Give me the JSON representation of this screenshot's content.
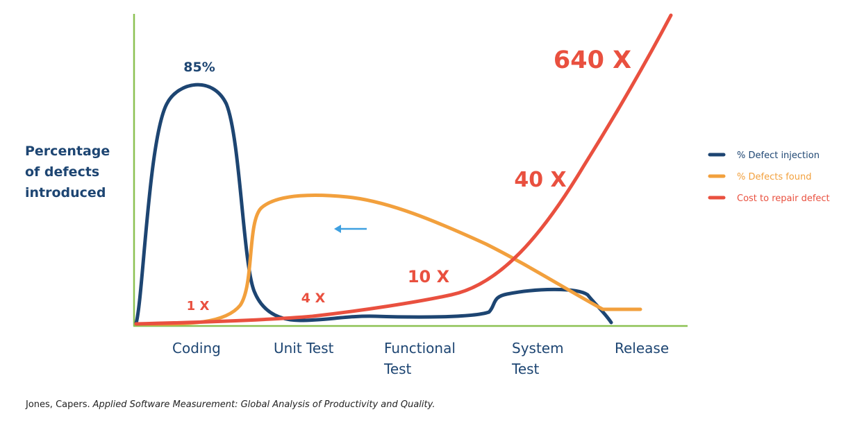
{
  "chart_data": {
    "type": "line",
    "y_label": "Percentage of defects introduced",
    "categories": [
      "Coding",
      "Unit Test",
      "Functional Test",
      "System Test",
      "Release"
    ],
    "axis_color": "#8cc152",
    "series": [
      {
        "name": "% Defect injection",
        "color": "#1d4572"
      },
      {
        "name": "% Defects found",
        "color": "#f2a03d"
      },
      {
        "name": "Cost to repair defect",
        "color": "#e9503f"
      }
    ],
    "annotations": [
      {
        "text": "85%",
        "color": "#1d4572"
      },
      {
        "text": "1 X",
        "color": "#e9503f"
      },
      {
        "text": "4 X",
        "color": "#e9503f"
      },
      {
        "text": "10 X",
        "color": "#e9503f"
      },
      {
        "text": "40 X",
        "color": "#e9503f"
      },
      {
        "text": "640 X",
        "color": "#e9503f"
      }
    ],
    "citation": {
      "author": "Jones, Capers.",
      "title": "Applied Software Measurement: Global Analysis of Productivity and Quality."
    }
  }
}
